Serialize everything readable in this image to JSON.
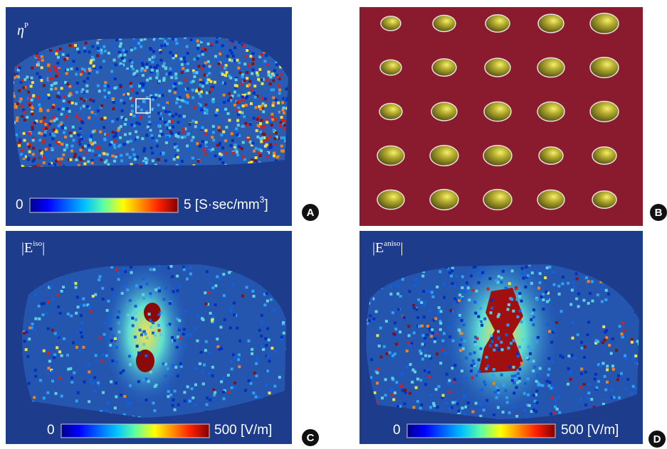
{
  "panels": [
    {
      "letter": "A",
      "label": {
        "symbol": "η",
        "superscript": "P"
      },
      "colorbar": {
        "min": "0",
        "max": {
          "text": "5 [S·sec/mm",
          "superscript": "3",
          "tail": "]"
        }
      }
    },
    {
      "letter": "B"
    },
    {
      "letter": "C",
      "label": {
        "symbol": "|E",
        "superscript": "iso",
        "tail": "|"
      },
      "colorbar": {
        "min": "0",
        "max": {
          "text": "500 [V/m]"
        }
      }
    },
    {
      "letter": "D",
      "label": {
        "symbol": "|E",
        "superscript": "aniso",
        "tail": "|"
      },
      "colorbar": {
        "min": "0",
        "max": {
          "text": "500 [V/m]"
        }
      }
    }
  ]
}
